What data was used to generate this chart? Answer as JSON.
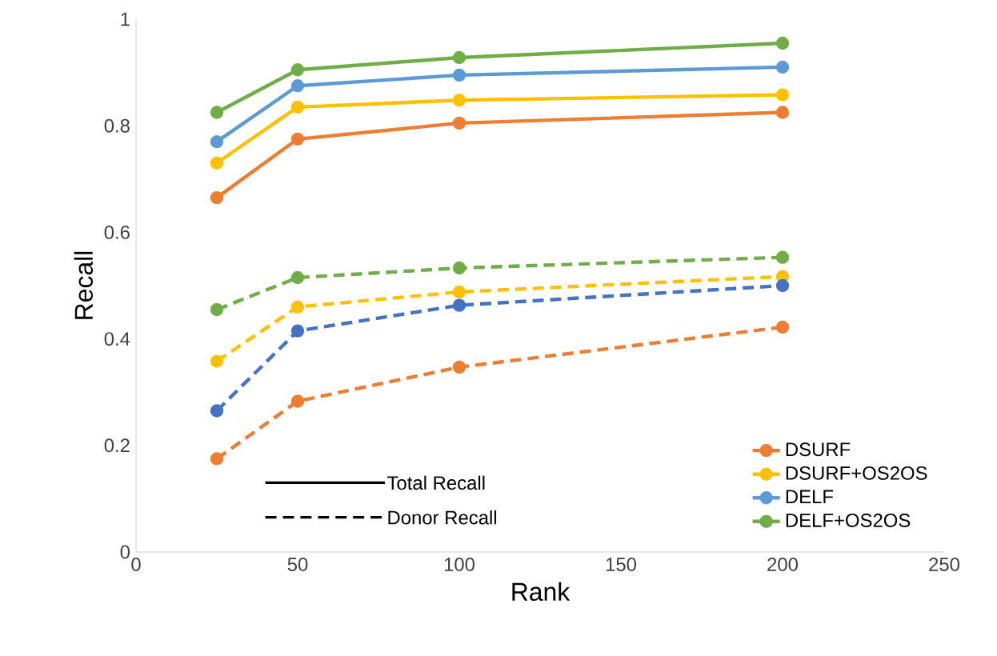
{
  "chart_data": {
    "type": "line",
    "xlabel": "Rank",
    "ylabel": "Recall",
    "x": [
      25,
      50,
      100,
      200
    ],
    "xlim": [
      0,
      250
    ],
    "xticks": [
      0,
      50,
      100,
      150,
      200,
      250
    ],
    "ylim": [
      0,
      1
    ],
    "yticks": [
      0,
      0.2,
      0.4,
      0.6,
      0.8,
      1
    ],
    "grid": false,
    "legend": "bottom right",
    "marker": "circle",
    "series": [
      {
        "name": "DSURF",
        "color": "#ed7d31",
        "line_style": "solid",
        "values": [
          0.665,
          0.775,
          0.805,
          0.825
        ]
      },
      {
        "name": "DSURF+OS2OS",
        "color": "#ffc000",
        "line_style": "solid",
        "values": [
          0.73,
          0.835,
          0.848,
          0.858
        ]
      },
      {
        "name": "DELF",
        "color": "#5b9bd5",
        "line_style": "solid",
        "values": [
          0.77,
          0.875,
          0.895,
          0.91
        ]
      },
      {
        "name": "DELF+OS2OS",
        "color": "#70ad47",
        "line_style": "solid",
        "values": [
          0.825,
          0.905,
          0.928,
          0.955
        ]
      },
      {
        "color": "#ed7d31",
        "line_style": "dashed",
        "values": [
          0.175,
          0.283,
          0.347,
          0.422
        ]
      },
      {
        "color": "#ffc000",
        "line_style": "dashed",
        "values": [
          0.358,
          0.46,
          0.488,
          0.517
        ]
      },
      {
        "color": "#4472c4",
        "line_style": "dashed",
        "values": [
          0.265,
          0.415,
          0.463,
          0.5
        ]
      },
      {
        "color": "#70ad47",
        "line_style": "dashed",
        "values": [
          0.455,
          0.515,
          0.533,
          0.553
        ]
      }
    ],
    "annotations": [
      "Total Recall",
      "Donor Recall"
    ]
  }
}
